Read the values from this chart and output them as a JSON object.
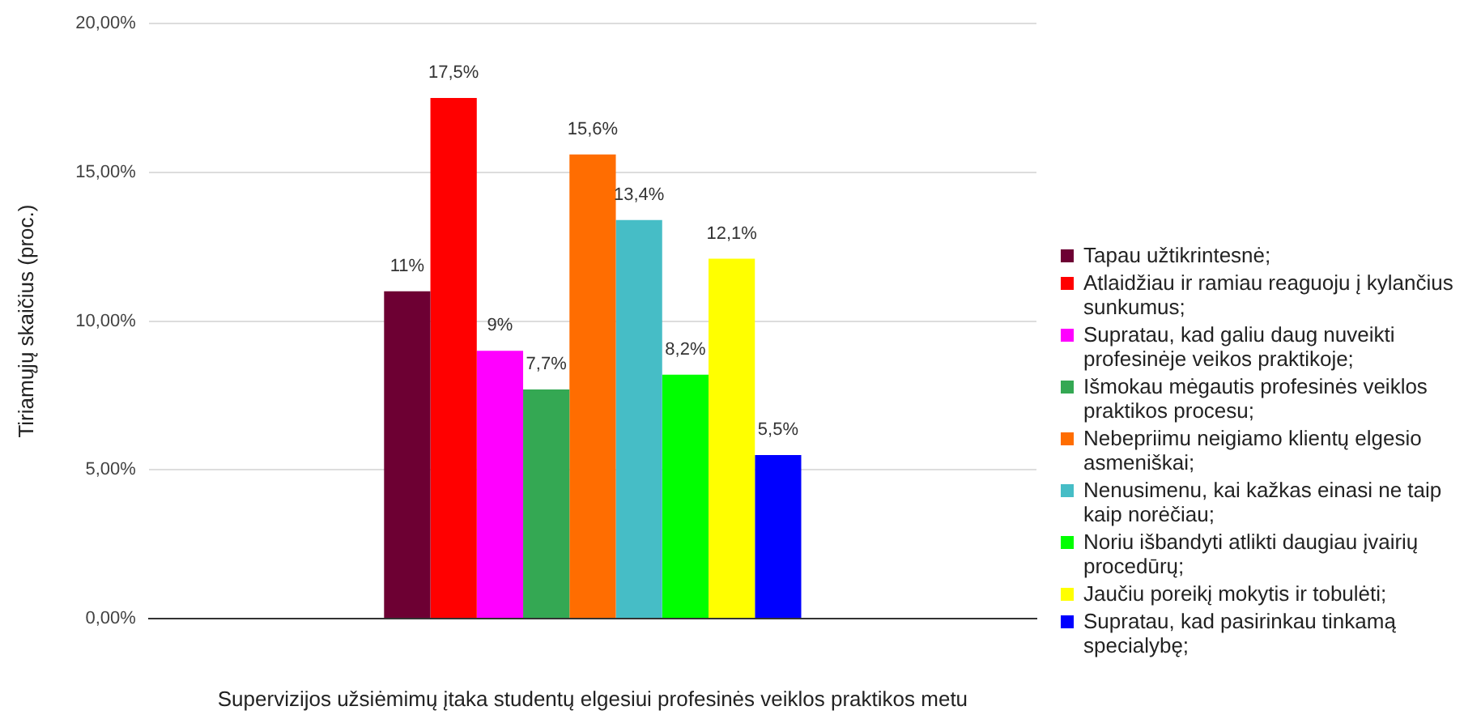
{
  "chart_data": {
    "type": "bar",
    "xlabel": "Supervizijos užsiėmimų įtaka studentų elgesiui profesinės veiklos praktikos metu",
    "ylabel": "Tiriamųjų skaičius (proc.)",
    "categories": [
      null
    ],
    "series": [
      {
        "name": "Tapau užtikrintesnė;",
        "color": "#6d0033",
        "values": [
          11
        ],
        "value_labels": [
          "11%"
        ]
      },
      {
        "name": "Atlaidžiau ir ramiau reaguoju į kylančius sunkumus;",
        "color": "#ff0000",
        "values": [
          17.5
        ],
        "value_labels": [
          "17,5%"
        ]
      },
      {
        "name": "Supratau, kad galiu daug nuveikti profesinėje veikos praktikoje;",
        "color": "#ff00ff",
        "values": [
          9
        ],
        "value_labels": [
          "9%"
        ]
      },
      {
        "name": "Išmokau mėgautis profesinės veiklos praktikos procesu;",
        "color": "#34a853",
        "values": [
          7.7
        ],
        "value_labels": [
          "7,7%"
        ]
      },
      {
        "name": "Nebepriimu neigiamo klientų elgesio asmeniškai;",
        "color": "#ff6d01",
        "values": [
          15.6
        ],
        "value_labels": [
          "15,6%"
        ]
      },
      {
        "name": "Nenusimenu, kai kažkas einasi ne taip kaip norėčiau;",
        "color": "#46bdc6",
        "values": [
          13.4
        ],
        "value_labels": [
          "13,4%"
        ]
      },
      {
        "name": "Noriu išbandyti atlikti daugiau įvairių procedūrų;",
        "color": "#00ff00",
        "values": [
          8.2
        ],
        "value_labels": [
          "8,2%"
        ]
      },
      {
        "name": "Jaučiu poreikį mokytis ir tobulėti;",
        "color": "#ffff00",
        "values": [
          12.1
        ],
        "value_labels": [
          "12,1%"
        ]
      },
      {
        "name": "Supratau, kad pasirinkau tinkamą specialybę;",
        "color": "#0000ff",
        "values": [
          5.5
        ],
        "value_labels": [
          "5,5%"
        ]
      }
    ],
    "ylim": [
      0,
      20
    ],
    "yticks": [
      {
        "value": 0,
        "label": "0,00%"
      },
      {
        "value": 5,
        "label": "5,00%"
      },
      {
        "value": 10,
        "label": "10,00%"
      },
      {
        "value": 15,
        "label": "15,00%"
      },
      {
        "value": 20,
        "label": "20,00%"
      }
    ],
    "grid": "y",
    "legend": "right"
  }
}
